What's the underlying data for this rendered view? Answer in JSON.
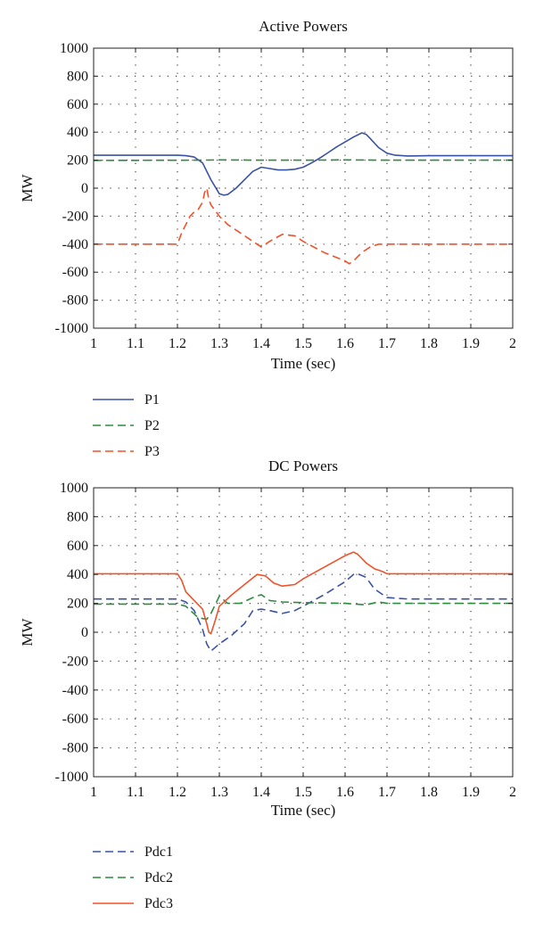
{
  "chart_data": [
    {
      "type": "line",
      "title": "Active Powers",
      "xlabel": "Time (sec)",
      "ylabel": "MW",
      "xlim": [
        1,
        2
      ],
      "ylim": [
        -1000,
        1000
      ],
      "xticks": [
        "1",
        "1.1",
        "1.2",
        "1.3",
        "1.4",
        "1.5",
        "1.6",
        "1.7",
        "1.8",
        "1.9",
        "2"
      ],
      "yticks": [
        "1000",
        "800",
        "600",
        "400",
        "200",
        "0",
        "-200",
        "-400",
        "-600",
        "-800",
        "-1000"
      ],
      "grid": true,
      "legend_position": "below",
      "series": [
        {
          "name": "P1",
          "color": "#3a52a4",
          "dash": "solid",
          "x": [
            1.0,
            1.2,
            1.22,
            1.24,
            1.26,
            1.28,
            1.3,
            1.31,
            1.32,
            1.34,
            1.36,
            1.38,
            1.4,
            1.42,
            1.44,
            1.46,
            1.48,
            1.5,
            1.52,
            1.54,
            1.56,
            1.58,
            1.6,
            1.62,
            1.64,
            1.65,
            1.66,
            1.68,
            1.7,
            1.72,
            1.75,
            1.8,
            2.0
          ],
          "y": [
            235,
            235,
            232,
            222,
            180,
            60,
            -40,
            -50,
            -45,
            0,
            60,
            120,
            150,
            140,
            130,
            130,
            135,
            150,
            180,
            215,
            255,
            295,
            330,
            365,
            395,
            385,
            355,
            290,
            250,
            235,
            230,
            232,
            232
          ]
        },
        {
          "name": "P2",
          "color": "#2e8b3e",
          "dash": "dashed",
          "x": [
            1.0,
            1.25,
            1.3,
            1.4,
            1.5,
            1.6,
            1.7,
            2.0
          ],
          "y": [
            198,
            200,
            202,
            200,
            200,
            202,
            200,
            200
          ]
        },
        {
          "name": "P3",
          "color": "#f0522a",
          "dash": "dashed",
          "x": [
            1.0,
            1.2,
            1.21,
            1.22,
            1.23,
            1.24,
            1.25,
            1.26,
            1.265,
            1.27,
            1.275,
            1.28,
            1.3,
            1.32,
            1.35,
            1.38,
            1.4,
            1.42,
            1.45,
            1.48,
            1.5,
            1.55,
            1.6,
            1.61,
            1.62,
            1.64,
            1.66,
            1.68,
            1.7,
            1.8,
            2.0
          ],
          "y": [
            -400,
            -400,
            -320,
            -260,
            -200,
            -170,
            -150,
            -100,
            -30,
            0,
            -80,
            -120,
            -200,
            -260,
            -320,
            -380,
            -420,
            -380,
            -330,
            -340,
            -380,
            -460,
            -520,
            -540,
            -520,
            -460,
            -420,
            -400,
            -400,
            -400,
            -400
          ]
        }
      ]
    },
    {
      "type": "line",
      "title": "DC Powers",
      "xlabel": "Time (sec)",
      "ylabel": "MW",
      "xlim": [
        1,
        2
      ],
      "ylim": [
        -1000,
        1000
      ],
      "xticks": [
        "1",
        "1.1",
        "1.2",
        "1.3",
        "1.4",
        "1.5",
        "1.6",
        "1.7",
        "1.8",
        "1.9",
        "2"
      ],
      "yticks": [
        "1000",
        "800",
        "600",
        "400",
        "200",
        "0",
        "-200",
        "-400",
        "-600",
        "-800",
        "-1000"
      ],
      "grid": true,
      "legend_position": "below",
      "series": [
        {
          "name": "Pdc1",
          "color": "#3a52a4",
          "dash": "dashed",
          "x": [
            1.0,
            1.2,
            1.22,
            1.24,
            1.26,
            1.27,
            1.28,
            1.3,
            1.33,
            1.36,
            1.38,
            1.4,
            1.42,
            1.45,
            1.48,
            1.5,
            1.55,
            1.6,
            1.62,
            1.63,
            1.65,
            1.67,
            1.7,
            1.75,
            2.0
          ],
          "y": [
            230,
            230,
            210,
            150,
            20,
            -80,
            -130,
            -80,
            -20,
            60,
            150,
            160,
            150,
            130,
            150,
            180,
            260,
            350,
            400,
            405,
            380,
            300,
            240,
            230,
            230
          ]
        },
        {
          "name": "Pdc2",
          "color": "#2e8b3e",
          "dash": "dashed",
          "x": [
            1.0,
            1.2,
            1.22,
            1.25,
            1.27,
            1.28,
            1.3,
            1.32,
            1.35,
            1.38,
            1.4,
            1.42,
            1.45,
            1.5,
            1.6,
            1.65,
            1.68,
            1.7,
            2.0
          ],
          "y": [
            195,
            195,
            180,
            100,
            90,
            130,
            250,
            200,
            200,
            240,
            260,
            220,
            210,
            205,
            200,
            190,
            210,
            200,
            200
          ]
        },
        {
          "name": "Pdc3",
          "color": "#f0522a",
          "dash": "solid",
          "x": [
            1.0,
            1.2,
            1.21,
            1.22,
            1.24,
            1.26,
            1.27,
            1.275,
            1.28,
            1.29,
            1.3,
            1.33,
            1.36,
            1.39,
            1.41,
            1.43,
            1.45,
            1.48,
            1.5,
            1.55,
            1.6,
            1.62,
            1.63,
            1.65,
            1.67,
            1.69,
            1.7,
            2.0
          ],
          "y": [
            405,
            405,
            360,
            280,
            220,
            160,
            60,
            0,
            -10,
            80,
            180,
            260,
            330,
            400,
            390,
            340,
            320,
            330,
            370,
            450,
            530,
            555,
            540,
            480,
            440,
            420,
            405,
            405
          ]
        }
      ]
    }
  ]
}
